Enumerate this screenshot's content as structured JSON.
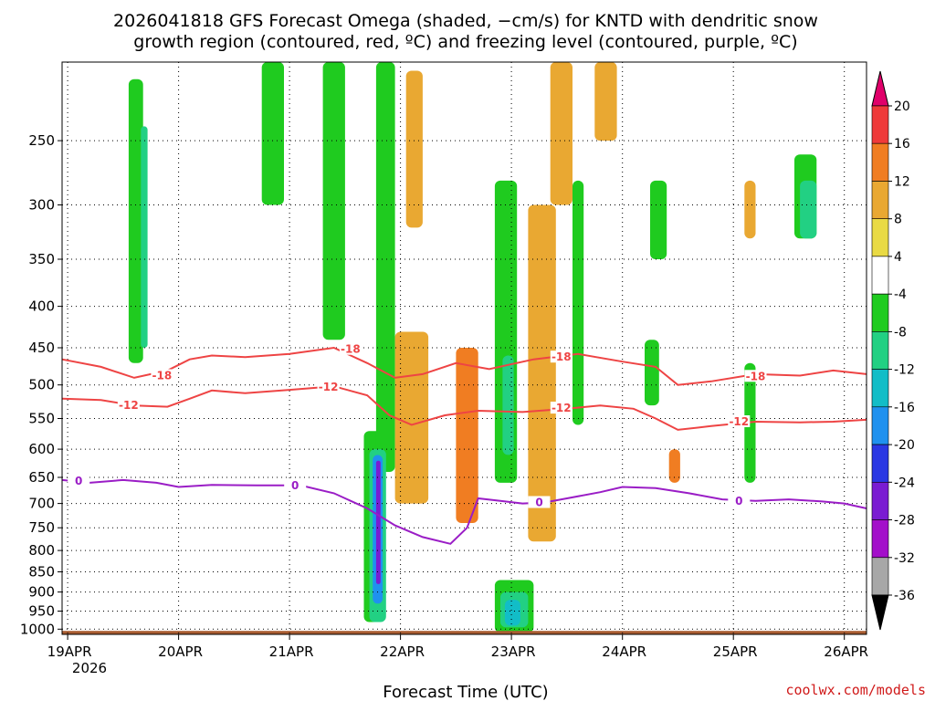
{
  "chart_data": {
    "type": "heatmap",
    "title_lines": [
      "2026041818 GFS Forecast Omega (shaded, −cm/s) for KNTD with dendritic snow",
      "growth region (contoured, red, ºC) and freezing level (contoured, purple, ºC)"
    ],
    "xlabel": "Forecast Time (UTC)",
    "x_ticks": [
      {
        "day": 0,
        "label": "19APR"
      },
      {
        "day": 1,
        "label": "20APR"
      },
      {
        "day": 2,
        "label": "21APR"
      },
      {
        "day": 3,
        "label": "22APR"
      },
      {
        "day": 4,
        "label": "23APR"
      },
      {
        "day": 5,
        "label": "24APR"
      },
      {
        "day": 6,
        "label": "25APR"
      },
      {
        "day": 7,
        "label": "26APR"
      }
    ],
    "x_year_label": "2026",
    "x_range_days": [
      -0.05,
      7.2
    ],
    "y_axis_type": "pressure_log",
    "y_ticks": [
      250,
      300,
      350,
      400,
      450,
      500,
      550,
      600,
      650,
      700,
      750,
      800,
      850,
      900,
      950,
      1000
    ],
    "y_range_hpa": [
      200,
      1015
    ],
    "colorbar": {
      "levels": [
        20,
        16,
        12,
        8,
        4,
        -4,
        -8,
        -12,
        -16,
        -20,
        -24,
        -28,
        -32,
        -36
      ],
      "colors": [
        "#e0006a",
        "#ef3a3a",
        "#f07d22",
        "#e9a832",
        "#e9da44",
        "#ffffff",
        "#1fcb1f",
        "#22d083",
        "#12bdc7",
        "#1f91ef",
        "#2a37e3",
        "#7a1cd2",
        "#a30fca",
        "#a7a7a7",
        "#000000"
      ]
    },
    "omega_features": [
      {
        "t0": 0.55,
        "t1": 0.68,
        "p0": 210,
        "p1": 470,
        "value": -8
      },
      {
        "t0": 0.66,
        "t1": 0.72,
        "p0": 240,
        "p1": 450,
        "value": -10
      },
      {
        "t0": 1.75,
        "t1": 1.95,
        "p0": 200,
        "p1": 300,
        "value": -8
      },
      {
        "t0": 2.3,
        "t1": 2.5,
        "p0": 200,
        "p1": 440,
        "value": -8
      },
      {
        "t0": 2.67,
        "t1": 2.83,
        "p0": 570,
        "p1": 980,
        "value": -8
      },
      {
        "t0": 2.78,
        "t1": 2.95,
        "p0": 200,
        "p1": 640,
        "value": -8
      },
      {
        "t0": 2.72,
        "t1": 2.87,
        "p0": 600,
        "p1": 980,
        "value": -12
      },
      {
        "t0": 2.75,
        "t1": 2.84,
        "p0": 610,
        "p1": 930,
        "value": -20
      },
      {
        "t0": 2.78,
        "t1": 2.82,
        "p0": 620,
        "p1": 880,
        "value": -28
      },
      {
        "t0": 2.95,
        "t1": 3.25,
        "p0": 430,
        "p1": 700,
        "value": 8
      },
      {
        "t0": 3.5,
        "t1": 3.7,
        "p0": 450,
        "p1": 740,
        "value": 12
      },
      {
        "t0": 3.05,
        "t1": 3.2,
        "p0": 205,
        "p1": 320,
        "value": 8
      },
      {
        "t0": 3.85,
        "t1": 4.05,
        "p0": 280,
        "p1": 660,
        "value": -8
      },
      {
        "t0": 3.92,
        "t1": 4.02,
        "p0": 460,
        "p1": 610,
        "value": -12
      },
      {
        "t0": 3.85,
        "t1": 4.2,
        "p0": 870,
        "p1": 1010,
        "value": -8
      },
      {
        "t0": 3.9,
        "t1": 4.15,
        "p0": 900,
        "p1": 995,
        "value": -12
      },
      {
        "t0": 3.94,
        "t1": 4.08,
        "p0": 920,
        "p1": 990,
        "value": -16
      },
      {
        "t0": 4.15,
        "t1": 4.4,
        "p0": 300,
        "p1": 780,
        "value": 8
      },
      {
        "t0": 4.35,
        "t1": 4.55,
        "p0": 200,
        "p1": 300,
        "value": 8
      },
      {
        "t0": 4.55,
        "t1": 4.65,
        "p0": 280,
        "p1": 560,
        "value": -8
      },
      {
        "t0": 4.75,
        "t1": 4.95,
        "p0": 200,
        "p1": 250,
        "value": 8
      },
      {
        "t0": 5.25,
        "t1": 5.4,
        "p0": 280,
        "p1": 350,
        "value": -8
      },
      {
        "t0": 5.2,
        "t1": 5.33,
        "p0": 440,
        "p1": 530,
        "value": -8
      },
      {
        "t0": 5.42,
        "t1": 5.52,
        "p0": 600,
        "p1": 660,
        "value": 12
      },
      {
        "t0": 6.1,
        "t1": 6.2,
        "p0": 470,
        "p1": 660,
        "value": -8
      },
      {
        "t0": 6.55,
        "t1": 6.75,
        "p0": 260,
        "p1": 330,
        "value": -8
      },
      {
        "t0": 6.6,
        "t1": 6.75,
        "p0": 280,
        "p1": 330,
        "value": -12
      },
      {
        "t0": 6.1,
        "t1": 6.2,
        "p0": 280,
        "p1": 330,
        "value": 8
      }
    ],
    "contours": [
      {
        "name": "-18",
        "color": "#ee4444",
        "label": "-18",
        "points": [
          [
            -0.05,
            465
          ],
          [
            0.3,
            475
          ],
          [
            0.6,
            490
          ],
          [
            0.9,
            480
          ],
          [
            1.1,
            465
          ],
          [
            1.3,
            460
          ],
          [
            1.6,
            462
          ],
          [
            2.0,
            458
          ],
          [
            2.4,
            450
          ],
          [
            2.7,
            470
          ],
          [
            2.95,
            490
          ],
          [
            3.2,
            485
          ],
          [
            3.5,
            470
          ],
          [
            3.8,
            478
          ],
          [
            4.2,
            465
          ],
          [
            4.6,
            458
          ],
          [
            5.0,
            468
          ],
          [
            5.3,
            475
          ],
          [
            5.5,
            500
          ],
          [
            5.8,
            495
          ],
          [
            6.2,
            485
          ],
          [
            6.6,
            487
          ],
          [
            6.9,
            480
          ],
          [
            7.2,
            485
          ]
        ],
        "label_at": [
          [
            0.85,
            487
          ],
          [
            2.55,
            452
          ],
          [
            4.45,
            462
          ],
          [
            6.2,
            488
          ]
        ]
      },
      {
        "name": "-12",
        "color": "#ee4444",
        "label": "-12",
        "points": [
          [
            -0.05,
            520
          ],
          [
            0.3,
            522
          ],
          [
            0.6,
            530
          ],
          [
            0.9,
            532
          ],
          [
            1.1,
            520
          ],
          [
            1.3,
            508
          ],
          [
            1.6,
            512
          ],
          [
            2.0,
            507
          ],
          [
            2.4,
            502
          ],
          [
            2.7,
            515
          ],
          [
            2.9,
            545
          ],
          [
            3.1,
            560
          ],
          [
            3.4,
            545
          ],
          [
            3.7,
            538
          ],
          [
            4.1,
            540
          ],
          [
            4.5,
            535
          ],
          [
            4.8,
            530
          ],
          [
            5.1,
            535
          ],
          [
            5.3,
            550
          ],
          [
            5.5,
            568
          ],
          [
            5.8,
            562
          ],
          [
            6.2,
            555
          ],
          [
            6.6,
            556
          ],
          [
            6.9,
            555
          ],
          [
            7.2,
            552
          ]
        ],
        "label_at": [
          [
            0.55,
            530
          ],
          [
            2.35,
            503
          ],
          [
            4.45,
            534
          ],
          [
            6.05,
            555
          ]
        ]
      },
      {
        "name": "0",
        "color": "#9a1dc6",
        "label": "0",
        "points": [
          [
            -0.05,
            655
          ],
          [
            0.2,
            660
          ],
          [
            0.5,
            655
          ],
          [
            0.8,
            660
          ],
          [
            1.0,
            668
          ],
          [
            1.3,
            664
          ],
          [
            1.7,
            665
          ],
          [
            2.1,
            665
          ],
          [
            2.4,
            680
          ],
          [
            2.7,
            710
          ],
          [
            2.95,
            745
          ],
          [
            3.2,
            770
          ],
          [
            3.45,
            785
          ],
          [
            3.6,
            750
          ],
          [
            3.7,
            690
          ],
          [
            3.9,
            695
          ],
          [
            4.1,
            700
          ],
          [
            4.3,
            698
          ],
          [
            4.5,
            690
          ],
          [
            4.8,
            678
          ],
          [
            5.0,
            668
          ],
          [
            5.3,
            670
          ],
          [
            5.6,
            680
          ],
          [
            5.9,
            692
          ],
          [
            6.2,
            695
          ],
          [
            6.5,
            692
          ],
          [
            6.8,
            696
          ],
          [
            7.0,
            700
          ],
          [
            7.2,
            710
          ]
        ],
        "label_at": [
          [
            0.1,
            657
          ],
          [
            2.05,
            665
          ],
          [
            4.25,
            698
          ],
          [
            6.05,
            695
          ]
        ]
      }
    ],
    "ground_band": {
      "p_top": 1005,
      "color": "#a95d32"
    },
    "credit": "coolwx.com/models"
  }
}
